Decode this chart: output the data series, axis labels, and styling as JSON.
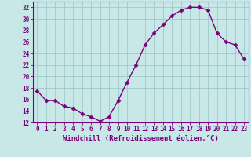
{
  "x": [
    0,
    1,
    2,
    3,
    4,
    5,
    6,
    7,
    8,
    9,
    10,
    11,
    12,
    13,
    14,
    15,
    16,
    17,
    18,
    19,
    20,
    21,
    22,
    23
  ],
  "y": [
    17.5,
    15.8,
    15.8,
    14.8,
    14.5,
    13.5,
    13.0,
    12.2,
    13.0,
    15.8,
    19.0,
    22.0,
    25.5,
    27.5,
    29.0,
    30.5,
    31.5,
    32.0,
    32.0,
    31.5,
    27.5,
    26.0,
    25.5,
    23.0
  ],
  "line_color": "#7b007b",
  "marker": "D",
  "marker_size": 2.5,
  "bg_color": "#c8e8e8",
  "grid_color": "#a0c8c8",
  "xlabel": "Windchill (Refroidissement éolien,°C)",
  "ylabel": "",
  "xlim_min": -0.5,
  "xlim_max": 23.5,
  "ylim_min": 12,
  "ylim_max": 33,
  "yticks": [
    12,
    14,
    16,
    18,
    20,
    22,
    24,
    26,
    28,
    30,
    32
  ],
  "xticks": [
    0,
    1,
    2,
    3,
    4,
    5,
    6,
    7,
    8,
    9,
    10,
    11,
    12,
    13,
    14,
    15,
    16,
    17,
    18,
    19,
    20,
    21,
    22,
    23
  ],
  "xlabel_fontsize": 6.5,
  "tick_fontsize": 5.5,
  "line_width": 1.0
}
